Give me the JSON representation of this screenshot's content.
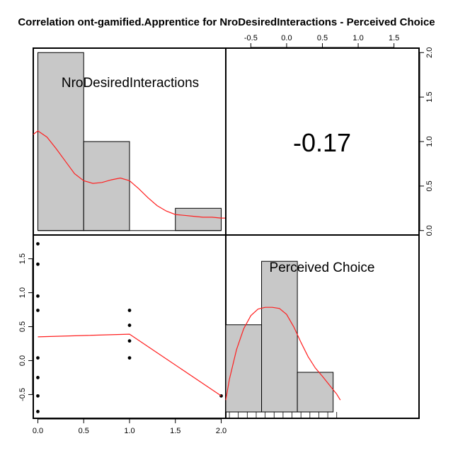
{
  "chart_data": {
    "type": "scatter",
    "title": "Correlation ont-gamified.Apprentice for NroDesiredInteractions - Perceived Choice",
    "variables": [
      "NroDesiredInteractions",
      "Perceived Choice"
    ],
    "correlation_label": "-0.17",
    "colors": {
      "bar": "#c8c8c8",
      "curve": "#ff2020",
      "point": "#000000",
      "frame": "#000000"
    },
    "bottom_axis": {
      "ticks": [
        "0.0",
        "0.5",
        "1.0",
        "1.5",
        "2.0"
      ],
      "lim": [
        -0.05,
        2.05
      ]
    },
    "top_axis": {
      "ticks": [
        "-0.5",
        "0.0",
        "0.5",
        "1.0",
        "1.5"
      ],
      "lim": [
        -0.85,
        1.85
      ]
    },
    "right_axis": {
      "ticks": [
        "0.0",
        "0.5",
        "1.0",
        "1.5",
        "2.0"
      ],
      "lim": [
        -0.05,
        2.05
      ]
    },
    "left_axis": {
      "ticks": [
        "-0.5",
        "0.0",
        "0.5",
        "1.0",
        "1.5"
      ],
      "lim": [
        -0.85,
        1.85
      ]
    },
    "histogram_x": {
      "bins": [
        [
          0.0,
          0.5,
          2
        ],
        [
          0.5,
          1.0,
          1
        ],
        [
          1.5,
          2.0,
          0.25
        ]
      ],
      "density": [
        [
          -0.1,
          1.08
        ],
        [
          0.0,
          1.12
        ],
        [
          0.1,
          1.05
        ],
        [
          0.2,
          0.92
        ],
        [
          0.3,
          0.78
        ],
        [
          0.4,
          0.64
        ],
        [
          0.5,
          0.56
        ],
        [
          0.6,
          0.53
        ],
        [
          0.7,
          0.54
        ],
        [
          0.8,
          0.57
        ],
        [
          0.9,
          0.59
        ],
        [
          1.0,
          0.56
        ],
        [
          1.1,
          0.47
        ],
        [
          1.2,
          0.37
        ],
        [
          1.3,
          0.28
        ],
        [
          1.4,
          0.22
        ],
        [
          1.5,
          0.18
        ],
        [
          1.6,
          0.17
        ],
        [
          1.7,
          0.16
        ],
        [
          1.8,
          0.15
        ],
        [
          1.9,
          0.15
        ],
        [
          2.0,
          0.14
        ],
        [
          2.1,
          0.14
        ]
      ]
    },
    "histogram_y": {
      "bins": [
        [
          -0.85,
          -0.35,
          1.1
        ],
        [
          -0.35,
          0.15,
          1.9
        ],
        [
          0.15,
          0.65,
          0.5
        ]
      ],
      "density": [
        [
          -0.85,
          0.2
        ],
        [
          -0.8,
          0.55
        ],
        [
          -0.7,
          1.05
        ],
        [
          -0.6,
          1.4
        ],
        [
          -0.5,
          1.62
        ],
        [
          -0.4,
          1.73
        ],
        [
          -0.3,
          1.76
        ],
        [
          -0.2,
          1.76
        ],
        [
          -0.1,
          1.74
        ],
        [
          0.0,
          1.64
        ],
        [
          0.1,
          1.43
        ],
        [
          0.2,
          1.17
        ],
        [
          0.3,
          0.93
        ],
        [
          0.4,
          0.74
        ],
        [
          0.5,
          0.6
        ],
        [
          0.6,
          0.45
        ],
        [
          0.7,
          0.3
        ],
        [
          0.75,
          0.2
        ]
      ]
    },
    "points": [
      [
        0.0,
        1.72
      ],
      [
        0.0,
        1.42
      ],
      [
        0.0,
        0.95
      ],
      [
        0.0,
        0.74
      ],
      [
        0.0,
        0.04
      ],
      [
        0.0,
        -0.25
      ],
      [
        0.0,
        -0.52
      ],
      [
        0.0,
        -0.75
      ],
      [
        1.0,
        0.74
      ],
      [
        1.0,
        0.52
      ],
      [
        1.0,
        0.29
      ],
      [
        1.0,
        0.04
      ],
      [
        2.0,
        -0.52
      ]
    ],
    "smooth": [
      [
        0.0,
        0.35
      ],
      [
        1.0,
        0.39
      ],
      [
        2.0,
        -0.52
      ]
    ]
  }
}
